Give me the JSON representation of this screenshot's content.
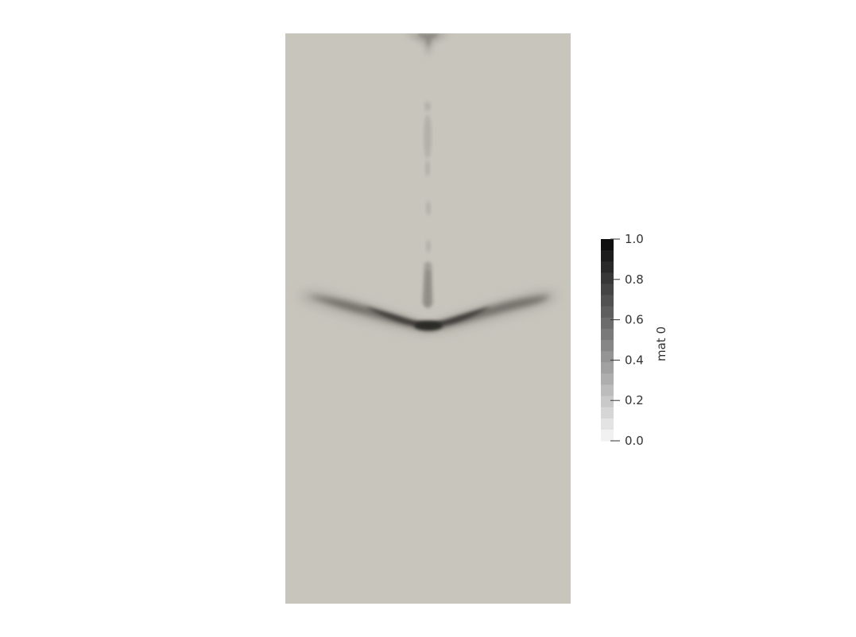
{
  "chart_data": {
    "type": "heatmap",
    "title": "",
    "field_name": "mat 0",
    "colormap": "grayscale",
    "background_color": "#c8c5bd",
    "colorbar": {
      "title": "mat 0",
      "range": [
        0.0,
        1.0
      ],
      "ticks": [
        0.0,
        0.2,
        0.4,
        0.6,
        0.8,
        1.0
      ],
      "tick_labels": [
        "0.0",
        "0.2",
        "0.4",
        "0.6",
        "0.8",
        "1.0"
      ],
      "num_bands": 18
    },
    "features": [
      {
        "name": "wings-band",
        "description_value": 0.65
      },
      {
        "name": "center-stem",
        "description_value": 0.3
      },
      {
        "name": "top-plume",
        "description_value": 0.25
      }
    ]
  }
}
